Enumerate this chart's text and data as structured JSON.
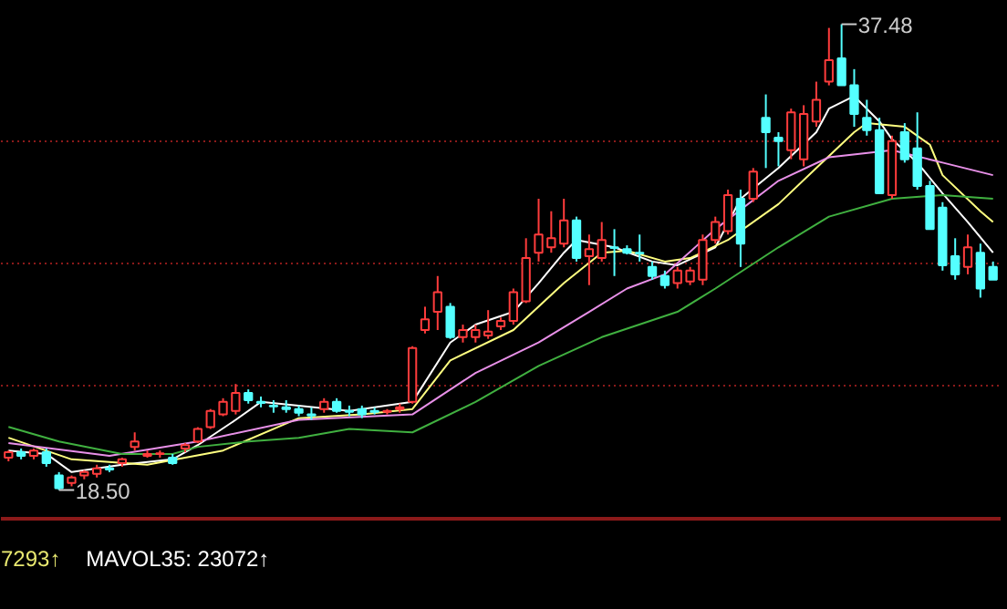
{
  "chart_data": {
    "type": "candlestick",
    "categories": [
      null,
      null,
      null,
      null,
      null,
      null,
      null,
      null,
      null,
      null,
      null,
      null,
      null,
      null,
      null,
      null,
      null,
      null,
      null,
      null,
      null,
      null,
      null,
      null,
      null,
      null,
      null,
      null,
      null,
      null,
      null,
      null,
      null,
      null,
      null,
      null,
      null,
      null,
      null,
      null,
      null,
      null,
      null,
      null,
      null,
      null,
      null,
      null,
      null,
      null,
      null,
      null,
      null,
      null,
      null,
      null,
      null,
      null,
      null,
      null,
      null,
      null,
      null,
      null,
      null,
      null,
      null,
      null,
      null,
      null,
      null,
      null,
      null,
      null,
      null,
      null,
      null,
      null,
      null
    ],
    "ohlc": [
      [
        19.82,
        20.11,
        19.67,
        20.04
      ],
      [
        20.04,
        20.19,
        19.75,
        19.89
      ],
      [
        19.89,
        20.19,
        19.75,
        20.11
      ],
      [
        20.04,
        20.19,
        19.45,
        19.6
      ],
      [
        19.09,
        19.23,
        18.5,
        18.57
      ],
      [
        18.79,
        19.09,
        18.65,
        19.01
      ],
      [
        19.09,
        19.31,
        18.94,
        19.23
      ],
      [
        19.16,
        19.53,
        19.01,
        19.38
      ],
      [
        19.38,
        19.53,
        19.23,
        19.34
      ],
      [
        19.6,
        19.82,
        19.45,
        19.75
      ],
      [
        20.26,
        20.85,
        20.11,
        20.48
      ],
      [
        19.89,
        20.11,
        19.82,
        19.97
      ],
      [
        19.97,
        20.11,
        19.82,
        20.0
      ],
      [
        19.82,
        19.97,
        19.53,
        19.6
      ],
      [
        20.19,
        20.41,
        20.04,
        20.33
      ],
      [
        20.48,
        21.06,
        20.41,
        20.99
      ],
      [
        21.06,
        21.8,
        20.99,
        21.72
      ],
      [
        21.58,
        22.24,
        21.51,
        22.09
      ],
      [
        21.72,
        22.82,
        21.58,
        22.46
      ],
      [
        22.46,
        22.6,
        22.02,
        22.16
      ],
      [
        22.09,
        22.31,
        21.87,
        22.05
      ],
      [
        21.94,
        22.16,
        21.65,
        21.91
      ],
      [
        21.87,
        22.16,
        21.65,
        21.8
      ],
      [
        21.8,
        21.94,
        21.51,
        21.65
      ],
      [
        21.58,
        21.87,
        21.36,
        21.54
      ],
      [
        21.8,
        22.24,
        21.65,
        22.09
      ],
      [
        22.09,
        22.24,
        21.65,
        21.72
      ],
      [
        21.72,
        21.94,
        21.51,
        21.69
      ],
      [
        21.8,
        21.94,
        21.43,
        21.58
      ],
      [
        21.72,
        21.87,
        21.58,
        21.69
      ],
      [
        21.69,
        21.8,
        21.58,
        21.72
      ],
      [
        21.8,
        22.02,
        21.65,
        21.87
      ],
      [
        22.09,
        24.36,
        22.02,
        24.29
      ],
      [
        25.02,
        25.97,
        24.88,
        25.46
      ],
      [
        25.76,
        27.22,
        25.02,
        26.56
      ],
      [
        25.97,
        26.12,
        24.66,
        24.73
      ],
      [
        24.73,
        25.24,
        24.51,
        25.02
      ],
      [
        24.73,
        25.24,
        24.51,
        25.02
      ],
      [
        24.8,
        25.83,
        24.66,
        24.95
      ],
      [
        25.17,
        25.53,
        25.02,
        25.39
      ],
      [
        25.39,
        26.71,
        25.24,
        26.56
      ],
      [
        26.19,
        28.76,
        26.12,
        27.95
      ],
      [
        28.17,
        30.37,
        27.81,
        28.91
      ],
      [
        28.39,
        29.86,
        28.17,
        28.76
      ],
      [
        28.54,
        30.37,
        28.39,
        29.49
      ],
      [
        29.49,
        29.64,
        27.81,
        27.95
      ],
      [
        28.03,
        28.91,
        26.85,
        28.32
      ],
      [
        27.95,
        29.42,
        27.81,
        28.69
      ],
      [
        28.39,
        29.13,
        27.22,
        28.36
      ],
      [
        28.32,
        28.47,
        28.1,
        28.17
      ],
      [
        28.17,
        28.91,
        27.81,
        28.14
      ],
      [
        27.59,
        27.81,
        27.07,
        27.22
      ],
      [
        27.22,
        27.44,
        26.71,
        26.85
      ],
      [
        26.93,
        27.59,
        26.71,
        27.44
      ],
      [
        27.0,
        27.59,
        26.85,
        27.44
      ],
      [
        27.07,
        28.91,
        26.85,
        28.69
      ],
      [
        28.69,
        29.64,
        28.54,
        29.42
      ],
      [
        29.05,
        30.74,
        28.91,
        30.52
      ],
      [
        30.37,
        30.74,
        27.59,
        28.54
      ],
      [
        30.37,
        31.62,
        30.23,
        31.47
      ],
      [
        33.67,
        34.62,
        31.62,
        33.08
      ],
      [
        32.86,
        33.08,
        31.69,
        32.72
      ],
      [
        32.35,
        34.04,
        31.98,
        33.89
      ],
      [
        31.98,
        34.18,
        31.69,
        33.82
      ],
      [
        33.52,
        35.14,
        33.3,
        34.4
      ],
      [
        35.14,
        37.33,
        34.99,
        36.02
      ],
      [
        36.09,
        37.48,
        34.99,
        34.99
      ],
      [
        34.99,
        35.65,
        33.3,
        33.82
      ],
      [
        33.67,
        34.4,
        32.94,
        33.16
      ],
      [
        33.16,
        33.67,
        30.59,
        30.59
      ],
      [
        30.52,
        32.94,
        30.37,
        32.72
      ],
      [
        33.08,
        33.45,
        31.84,
        31.98
      ],
      [
        32.42,
        33.89,
        30.74,
        30.89
      ],
      [
        30.89,
        31.1,
        29.13,
        29.13
      ],
      [
        30.01,
        30.23,
        27.44,
        27.66
      ],
      [
        28.03,
        28.76,
        27.07,
        27.29
      ],
      [
        27.59,
        28.91,
        27.29,
        28.39
      ],
      [
        28.17,
        28.54,
        26.34,
        26.71
      ],
      [
        27.59,
        27.81,
        27.07,
        27.07
      ]
    ],
    "colors": [
      "#ff3c3c",
      "#54ffff",
      "#ff3c3c",
      "#54ffff",
      "#54ffff",
      "#ff3c3c",
      "#ff3c3c",
      "#ff3c3c",
      "#54ffff",
      "#ff3c3c",
      "#ff3c3c",
      "#ff3c3c",
      "#ff3c3c",
      "#54ffff",
      "#ff3c3c",
      "#ff3c3c",
      "#ff3c3c",
      "#ff3c3c",
      "#ff3c3c",
      "#54ffff",
      "#54ffff",
      "#54ffff",
      "#54ffff",
      "#54ffff",
      "#54ffff",
      "#ff3c3c",
      "#54ffff",
      "#54ffff",
      "#54ffff",
      "#54ffff",
      "#ff3c3c",
      "#ff3c3c",
      "#ff3c3c",
      "#ff3c3c",
      "#ff3c3c",
      "#54ffff",
      "#ff3c3c",
      "#ff3c3c",
      "#ff3c3c",
      "#ff3c3c",
      "#ff3c3c",
      "#ff3c3c",
      "#ff3c3c",
      "#ff3c3c",
      "#ff3c3c",
      "#54ffff",
      "#ff3c3c",
      "#ff3c3c",
      "#54ffff",
      "#54ffff",
      "#54ffff",
      "#54ffff",
      "#54ffff",
      "#ff3c3c",
      "#ff3c3c",
      "#ff3c3c",
      "#ff3c3c",
      "#ff3c3c",
      "#54ffff",
      "#ff3c3c",
      "#54ffff",
      "#54ffff",
      "#ff3c3c",
      "#ff3c3c",
      "#ff3c3c",
      "#ff3c3c",
      "#54ffff",
      "#54ffff",
      "#54ffff",
      "#54ffff",
      "#ff3c3c",
      "#54ffff",
      "#54ffff",
      "#54ffff",
      "#54ffff",
      "#54ffff",
      "#ff3c3c",
      "#54ffff",
      "#54ffff"
    ],
    "series": [
      {
        "type": "line",
        "color": "#ffffff",
        "values": [
          20.11,
          null,
          null,
          19.97,
          null,
          19.23,
          null,
          null,
          null,
          19.53,
          null,
          null,
          null,
          19.75,
          null,
          20.33,
          null,
          null,
          21.36,
          null,
          22.09,
          null,
          null,
          21.94,
          null,
          null,
          null,
          21.72,
          null,
          null,
          null,
          null,
          22.09,
          null,
          null,
          24.51,
          null,
          25.24,
          null,
          null,
          25.76,
          null,
          26.93,
          null,
          28.17,
          28.69,
          null,
          null,
          28.39,
          null,
          null,
          27.81,
          null,
          27.66,
          null,
          null,
          28.39,
          null,
          30.37,
          null,
          null,
          31.62,
          null,
          null,
          33.08,
          34.04,
          null,
          34.55,
          null,
          33.52,
          32.79,
          null,
          31.84,
          null,
          30.59,
          null,
          29.42,
          null,
          28.17
        ]
      },
      {
        "type": "line",
        "color": "#ffff80",
        "values": [
          20.63,
          null,
          null,
          null,
          null,
          19.75,
          null,
          null,
          null,
          null,
          null,
          19.53,
          null,
          null,
          null,
          null,
          null,
          20.11,
          null,
          null,
          null,
          null,
          null,
          21.43,
          null,
          null,
          null,
          null,
          21.58,
          null,
          null,
          null,
          21.8,
          null,
          null,
          23.78,
          null,
          null,
          null,
          null,
          25.02,
          null,
          null,
          null,
          26.93,
          null,
          null,
          28.17,
          null,
          28.25,
          null,
          null,
          27.81,
          null,
          27.95,
          null,
          null,
          28.69,
          null,
          null,
          null,
          30.15,
          null,
          null,
          31.62,
          null,
          null,
          33.08,
          33.45,
          null,
          null,
          33.3,
          null,
          32.57,
          31.33,
          null,
          null,
          29.86,
          29.42
        ]
      },
      {
        "type": "line",
        "color": "#e890e8",
        "values": [
          20.41,
          null,
          null,
          null,
          null,
          null,
          null,
          null,
          19.89,
          null,
          null,
          null,
          null,
          null,
          null,
          20.48,
          null,
          null,
          null,
          null,
          null,
          null,
          null,
          21.36,
          null,
          null,
          null,
          null,
          null,
          null,
          null,
          null,
          21.58,
          null,
          null,
          null,
          null,
          23.27,
          null,
          null,
          null,
          null,
          24.51,
          null,
          null,
          null,
          25.76,
          null,
          null,
          26.71,
          null,
          null,
          27.29,
          null,
          null,
          null,
          29.13,
          null,
          null,
          null,
          null,
          31.1,
          null,
          null,
          null,
          32.06,
          null,
          null,
          null,
          null,
          32.35,
          null,
          null,
          null,
          31.84,
          null,
          null,
          null,
          31.33
        ]
      },
      {
        "type": "line",
        "color": "#40b040",
        "values": [
          21.07,
          null,
          null,
          null,
          20.48,
          null,
          null,
          null,
          null,
          19.97,
          null,
          null,
          null,
          19.97,
          null,
          20.26,
          null,
          null,
          null,
          20.48,
          null,
          null,
          null,
          20.63,
          null,
          null,
          null,
          20.99,
          null,
          null,
          null,
          null,
          20.85,
          null,
          null,
          null,
          null,
          22.09,
          null,
          null,
          null,
          null,
          23.56,
          null,
          null,
          null,
          null,
          24.73,
          null,
          null,
          null,
          null,
          null,
          25.76,
          null,
          null,
          26.71,
          null,
          null,
          null,
          null,
          28.39,
          null,
          null,
          null,
          29.64,
          null,
          null,
          null,
          null,
          30.37,
          null,
          null,
          null,
          30.52,
          null,
          null,
          null,
          30.37
        ]
      }
    ],
    "ylim": [
      17.33,
      38.43
    ],
    "yticks": [
      {
        "value": 22.75,
        "label": null
      },
      {
        "value": 27.73,
        "label": null
      },
      {
        "value": 32.72,
        "label": null
      }
    ],
    "grid": "y",
    "tick_labels": false,
    "annotations": [
      "37.48",
      "18.50",
      "7293↑",
      "MAVOL35: 23072↑"
    ]
  }
}
